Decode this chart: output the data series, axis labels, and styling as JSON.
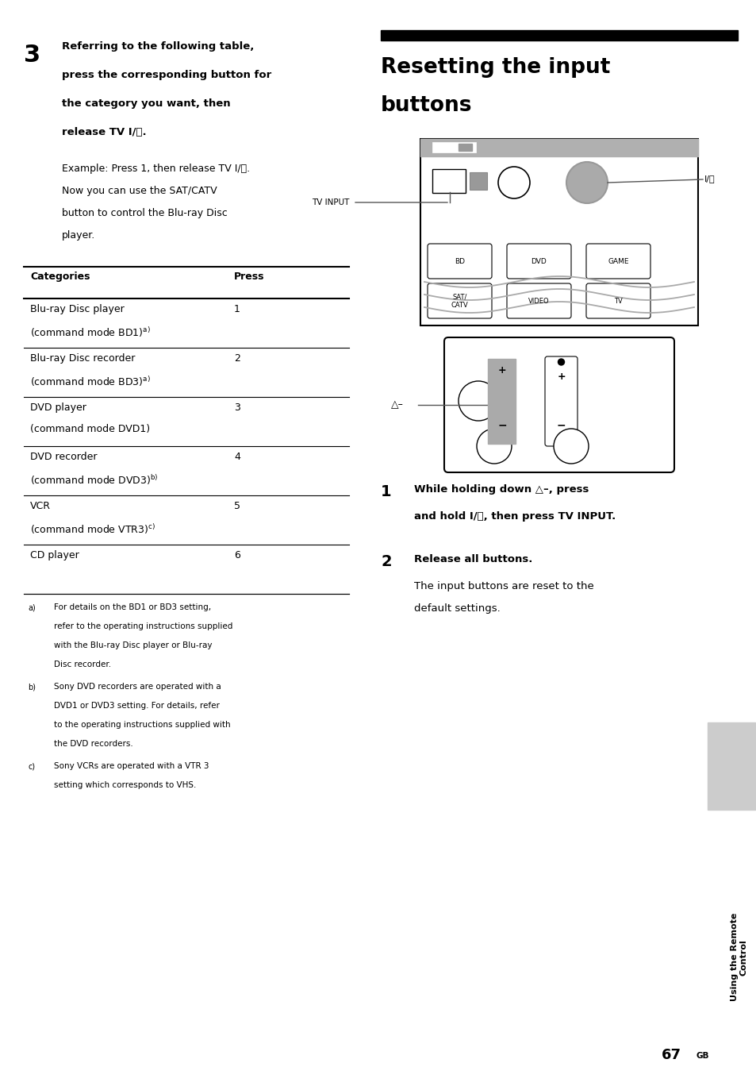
{
  "bg_color": "#ffffff",
  "page_width": 9.54,
  "page_height": 13.73,
  "title_line1": "Resetting the input",
  "title_line2": "buttons",
  "step3_num": "3",
  "step3_lines": [
    "Referring to the following table,",
    "press the corresponding button for",
    "the category you want, then",
    "release TV I/⏻."
  ],
  "example_lines": [
    "Example: Press 1, then release TV I/⏻.",
    "Now you can use the SAT/CATV",
    "button to control the Blu-ray Disc",
    "player."
  ],
  "table_header_cat": "Categories",
  "table_header_press": "Press",
  "table_rows": [
    [
      "Blu-ray Disc player",
      "(command mode BD1)",
      "1",
      "a"
    ],
    [
      "Blu-ray Disc recorder",
      "(command mode BD3)",
      "2",
      "a"
    ],
    [
      "DVD player",
      "(command mode DVD1)",
      "3",
      ""
    ],
    [
      "DVD recorder",
      "(command mode DVD3)",
      "4",
      "b"
    ],
    [
      "VCR",
      "(command mode VTR3)",
      "5",
      "c"
    ],
    [
      "CD player",
      "",
      "6",
      ""
    ]
  ],
  "fn_a_lines": [
    "For details on the BD1 or BD3 setting,",
    "refer to the operating instructions supplied",
    "with the Blu-ray Disc player or Blu-ray",
    "Disc recorder."
  ],
  "fn_b_lines": [
    "Sony DVD recorders are operated with a",
    "DVD1 or DVD3 setting. For details, refer",
    "to the operating instructions supplied with",
    "the DVD recorders."
  ],
  "fn_c_lines": [
    "Sony VCRs are operated with a VTR 3",
    "setting which corresponds to VHS."
  ],
  "step1_line1": "While holding down △–, press",
  "step1_line2": "and hold I/⏻, then press TV INPUT.",
  "step2_bold": "Release all buttons.",
  "step2_normal1": "The input buttons are reset to the",
  "step2_normal2": "default settings.",
  "sidebar_text": "Using the Remote\nControl",
  "page_number": "67",
  "page_suffix": "GB"
}
